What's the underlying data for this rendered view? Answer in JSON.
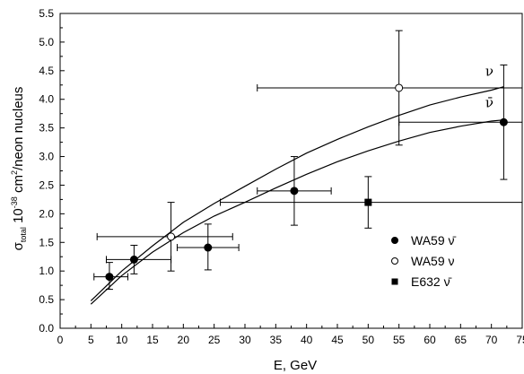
{
  "chart_data": {
    "type": "scatter",
    "xlabel": "E, GeV",
    "ylabel": {
      "sym": "σ",
      "sub": "total",
      "pre": " 10",
      "exp": "-38",
      "mid": " cm",
      "exp2": "2",
      "post": "/neon nucleus"
    },
    "xlim": [
      0,
      75
    ],
    "ylim": [
      0,
      5.5
    ],
    "x_ticks": [
      "0",
      "5",
      "10",
      "15",
      "20",
      "25",
      "30",
      "35",
      "40",
      "45",
      "50",
      "55",
      "60",
      "65",
      "70",
      "75"
    ],
    "y_ticks": [
      "0.0",
      "0.5",
      "1.0",
      "1.5",
      "2.0",
      "2.5",
      "3.0",
      "3.5",
      "4.0",
      "4.5",
      "5.0",
      "5.5"
    ],
    "grid": false,
    "legend_position": "bottom-right",
    "series": [
      {
        "name": "WA59 ν̄",
        "marker": "filled-circle",
        "points": [
          {
            "x": 8,
            "y": 0.9,
            "xerr": [
              5.5,
              11
            ],
            "yerr": [
              0.68,
              1.15
            ]
          },
          {
            "x": 12,
            "y": 1.2,
            "xerr": [
              7.5,
              18
            ],
            "yerr": [
              0.95,
              1.45
            ]
          },
          {
            "x": 24,
            "y": 1.41,
            "xerr": [
              19,
              29
            ],
            "yerr": [
              1.02,
              1.82
            ]
          },
          {
            "x": 38,
            "y": 2.4,
            "xerr": [
              32,
              44
            ],
            "yerr": [
              1.8,
              3.0
            ]
          },
          {
            "x": 72,
            "y": 3.6,
            "xerr": [
              55,
              75
            ],
            "yerr": [
              2.6,
              4.6
            ]
          }
        ]
      },
      {
        "name": "WA59 ν",
        "marker": "open-circle",
        "points": [
          {
            "x": 18,
            "y": 1.6,
            "xerr": [
              6,
              28
            ],
            "yerr": [
              1.0,
              2.2
            ]
          },
          {
            "x": 55,
            "y": 4.2,
            "xerr": [
              32,
              75
            ],
            "yerr": [
              3.2,
              5.2
            ]
          }
        ]
      },
      {
        "name": "E632 ν̄",
        "marker": "filled-square",
        "points": [
          {
            "x": 50,
            "y": 2.2,
            "xerr": [
              26,
              75
            ],
            "yerr": [
              1.75,
              2.65
            ]
          }
        ]
      }
    ],
    "curves": [
      {
        "label": "ν",
        "points": [
          [
            5,
            0.48
          ],
          [
            10,
            1.0
          ],
          [
            15,
            1.44
          ],
          [
            20,
            1.85
          ],
          [
            25,
            2.18
          ],
          [
            30,
            2.48
          ],
          [
            35,
            2.78
          ],
          [
            40,
            3.06
          ],
          [
            45,
            3.3
          ],
          [
            50,
            3.52
          ],
          [
            55,
            3.72
          ],
          [
            60,
            3.9
          ],
          [
            65,
            4.04
          ],
          [
            70,
            4.16
          ],
          [
            72,
            4.22
          ]
        ]
      },
      {
        "label": "ν̄",
        "points": [
          [
            5,
            0.42
          ],
          [
            10,
            0.92
          ],
          [
            15,
            1.33
          ],
          [
            20,
            1.67
          ],
          [
            25,
            1.96
          ],
          [
            30,
            2.2
          ],
          [
            35,
            2.45
          ],
          [
            40,
            2.69
          ],
          [
            45,
            2.91
          ],
          [
            50,
            3.1
          ],
          [
            55,
            3.27
          ],
          [
            60,
            3.42
          ],
          [
            65,
            3.53
          ],
          [
            70,
            3.62
          ],
          [
            72,
            3.64
          ]
        ]
      }
    ],
    "legend": [
      {
        "marker": "filled-circle",
        "text": "WA59 ν̄"
      },
      {
        "marker": "open-circle",
        "text": "WA59 ν"
      },
      {
        "marker": "filled-square",
        "text": "E632 ν̄"
      }
    ]
  }
}
